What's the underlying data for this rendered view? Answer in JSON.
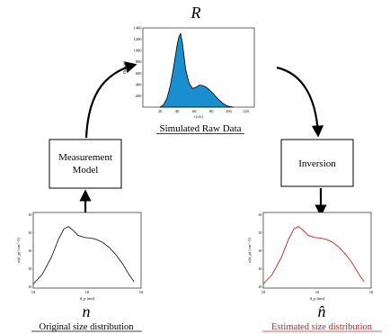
{
  "symbols": {
    "raw": "R",
    "original": "n",
    "estimated": "n̂"
  },
  "boxes": {
    "measurement_line1": "Measurement",
    "measurement_line2": "Model",
    "inversion": "Inversion"
  },
  "captions": {
    "raw": "Simulated Raw Data",
    "original": "Original size distribution",
    "estimated": "Estimated size distribution"
  },
  "colors": {
    "original_curve": "#000000",
    "estimated_curve": "#cc2020",
    "estimated_caption": "#cc2020",
    "raw_fill": "#1a8fd0",
    "arrow": "#000000"
  },
  "chart_data": [
    {
      "type": "area",
      "id": "simulated-raw-data",
      "xlabel": "t [ch.]",
      "ylabel": "R(t) [#]",
      "xlim": [
        0,
        130
      ],
      "ylim": [
        0,
        1400
      ],
      "x_ticks": [
        "20",
        "40",
        "60",
        "80",
        "100",
        "120"
      ],
      "y_ticks": [
        "200",
        "400",
        "600",
        "800",
        "1000",
        "1200",
        "1400"
      ],
      "x": [
        20,
        24,
        28,
        32,
        36,
        40,
        42,
        44,
        46,
        48,
        50,
        54,
        58,
        62,
        66,
        70,
        74,
        78,
        82,
        86,
        90,
        94,
        98,
        102,
        106
      ],
      "y": [
        0,
        40,
        150,
        380,
        720,
        1100,
        1240,
        1300,
        1150,
        900,
        660,
        420,
        330,
        350,
        390,
        380,
        350,
        300,
        240,
        170,
        110,
        60,
        25,
        8,
        0
      ]
    },
    {
      "type": "line",
      "id": "original-size-distribution",
      "xlabel": "d_p [nm]",
      "ylabel": "n(d_p) [cm^-3]",
      "xscale": "log",
      "yscale": "log",
      "x_ticks": [
        "10",
        "10",
        "10"
      ],
      "y_ticks": [
        "10",
        "10",
        "10",
        "10",
        "10"
      ],
      "x": [
        1.0,
        1.4,
        2.0,
        2.6,
        3.2,
        3.8,
        4.5,
        5.5,
        7.0,
        9.0,
        11.0,
        14.0,
        18.0,
        23.0,
        30.0,
        38.0,
        46.0
      ],
      "y": [
        0.01,
        0.05,
        1.0,
        20,
        120,
        180,
        100,
        40,
        28,
        25,
        20,
        12,
        5,
        1.5,
        0.3,
        0.05,
        0.015
      ]
    },
    {
      "type": "line",
      "id": "estimated-size-distribution",
      "xlabel": "d_p [nm]",
      "ylabel": "n(d_p) [cm^-3]",
      "xscale": "log",
      "yscale": "log",
      "x_ticks": [
        "10",
        "10",
        "10"
      ],
      "y_ticks": [
        "10",
        "10",
        "10",
        "10",
        "10"
      ],
      "x": [
        1.0,
        1.4,
        2.0,
        2.6,
        3.2,
        3.8,
        4.5,
        5.5,
        7.0,
        9.0,
        11.0,
        14.0,
        18.0,
        23.0,
        30.0,
        38.0,
        46.0
      ],
      "y": [
        0.01,
        0.05,
        1.0,
        20,
        120,
        180,
        100,
        40,
        28,
        25,
        20,
        12,
        5,
        1.5,
        0.3,
        0.05,
        0.015
      ]
    }
  ]
}
